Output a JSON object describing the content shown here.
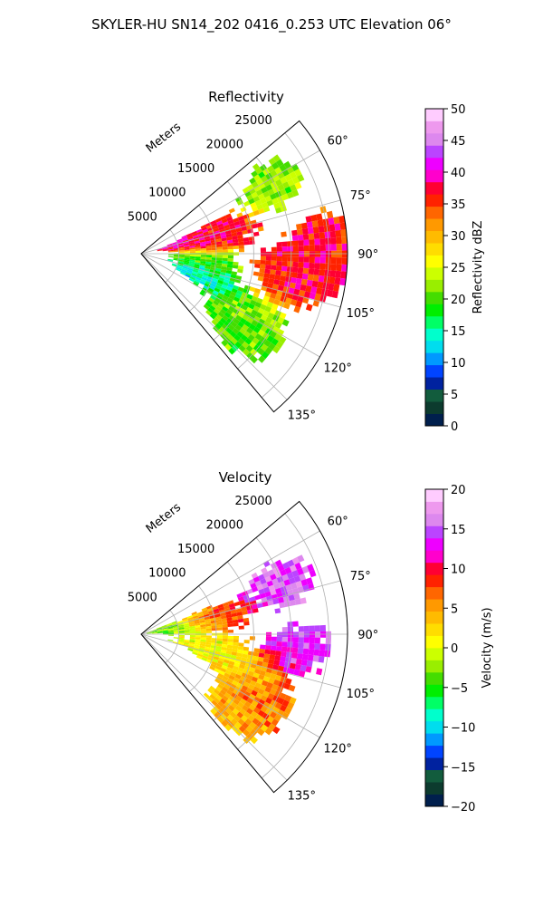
{
  "title": "SKYLER-HU  SN14_202  0416_0.253 UTC Elevation 06°",
  "chart_data": [
    {
      "type": "heatmap",
      "projection": "polar-sector",
      "title": "Reflectivity",
      "range_axis_label": "Meters",
      "range_ticks": [
        5000,
        10000,
        15000,
        20000,
        25000
      ],
      "azimuth_ticks": [
        "60°",
        "75°",
        "90°",
        "105°",
        "120°",
        "135°"
      ],
      "azimuth_tick_values": [
        60,
        75,
        90,
        105,
        120,
        135
      ],
      "azimuth_range": [
        50,
        140
      ],
      "range_limit": [
        0,
        27500
      ],
      "colorbar": {
        "label": "Reflectivity dBZ",
        "ticks": [
          "0",
          "5",
          "10",
          "15",
          "20",
          "25",
          "30",
          "35",
          "40",
          "45",
          "50"
        ],
        "range": [
          0,
          50
        ]
      },
      "echo_regions": [
        {
          "az": 78,
          "range": 7000,
          "value": 40
        },
        {
          "az": 76,
          "range": 11000,
          "value": 36
        },
        {
          "az": 93,
          "range": 21500,
          "value": 38
        },
        {
          "az": 100,
          "range": 20500,
          "value": 36
        },
        {
          "az": 87,
          "range": 26000,
          "value": 36
        },
        {
          "az": 95,
          "range": 8000,
          "value": 20
        },
        {
          "az": 110,
          "range": 9000,
          "value": 14
        },
        {
          "az": 62,
          "range": 20000,
          "value": 22
        },
        {
          "az": 120,
          "range": 17000,
          "value": 22
        },
        {
          "az": 128,
          "range": 16000,
          "value": 20
        }
      ]
    },
    {
      "type": "heatmap",
      "projection": "polar-sector",
      "title": "Velocity",
      "range_axis_label": "Meters",
      "range_ticks": [
        5000,
        10000,
        15000,
        20000,
        25000
      ],
      "azimuth_ticks": [
        "60°",
        "75°",
        "90°",
        "105°",
        "120°",
        "135°"
      ],
      "azimuth_tick_values": [
        60,
        75,
        90,
        105,
        120,
        135
      ],
      "azimuth_range": [
        50,
        140
      ],
      "range_limit": [
        0,
        27500
      ],
      "colorbar": {
        "label": "Velocity (m/s)",
        "ticks": [
          "−20",
          "−15",
          "−10",
          "−5",
          "0",
          "5",
          "10",
          "15",
          "20"
        ],
        "range": [
          -20,
          20
        ]
      },
      "echo_regions": [
        {
          "az": 70,
          "range": 20000,
          "value": 15
        },
        {
          "az": 78,
          "range": 10000,
          "value": 8
        },
        {
          "az": 80,
          "range": 4000,
          "value": -4
        },
        {
          "az": 95,
          "range": 21000,
          "value": 14
        },
        {
          "az": 100,
          "range": 9000,
          "value": 0
        },
        {
          "az": 110,
          "range": 14000,
          "value": 2
        },
        {
          "az": 118,
          "range": 18000,
          "value": 7
        },
        {
          "az": 130,
          "range": 16000,
          "value": 4
        }
      ]
    }
  ]
}
